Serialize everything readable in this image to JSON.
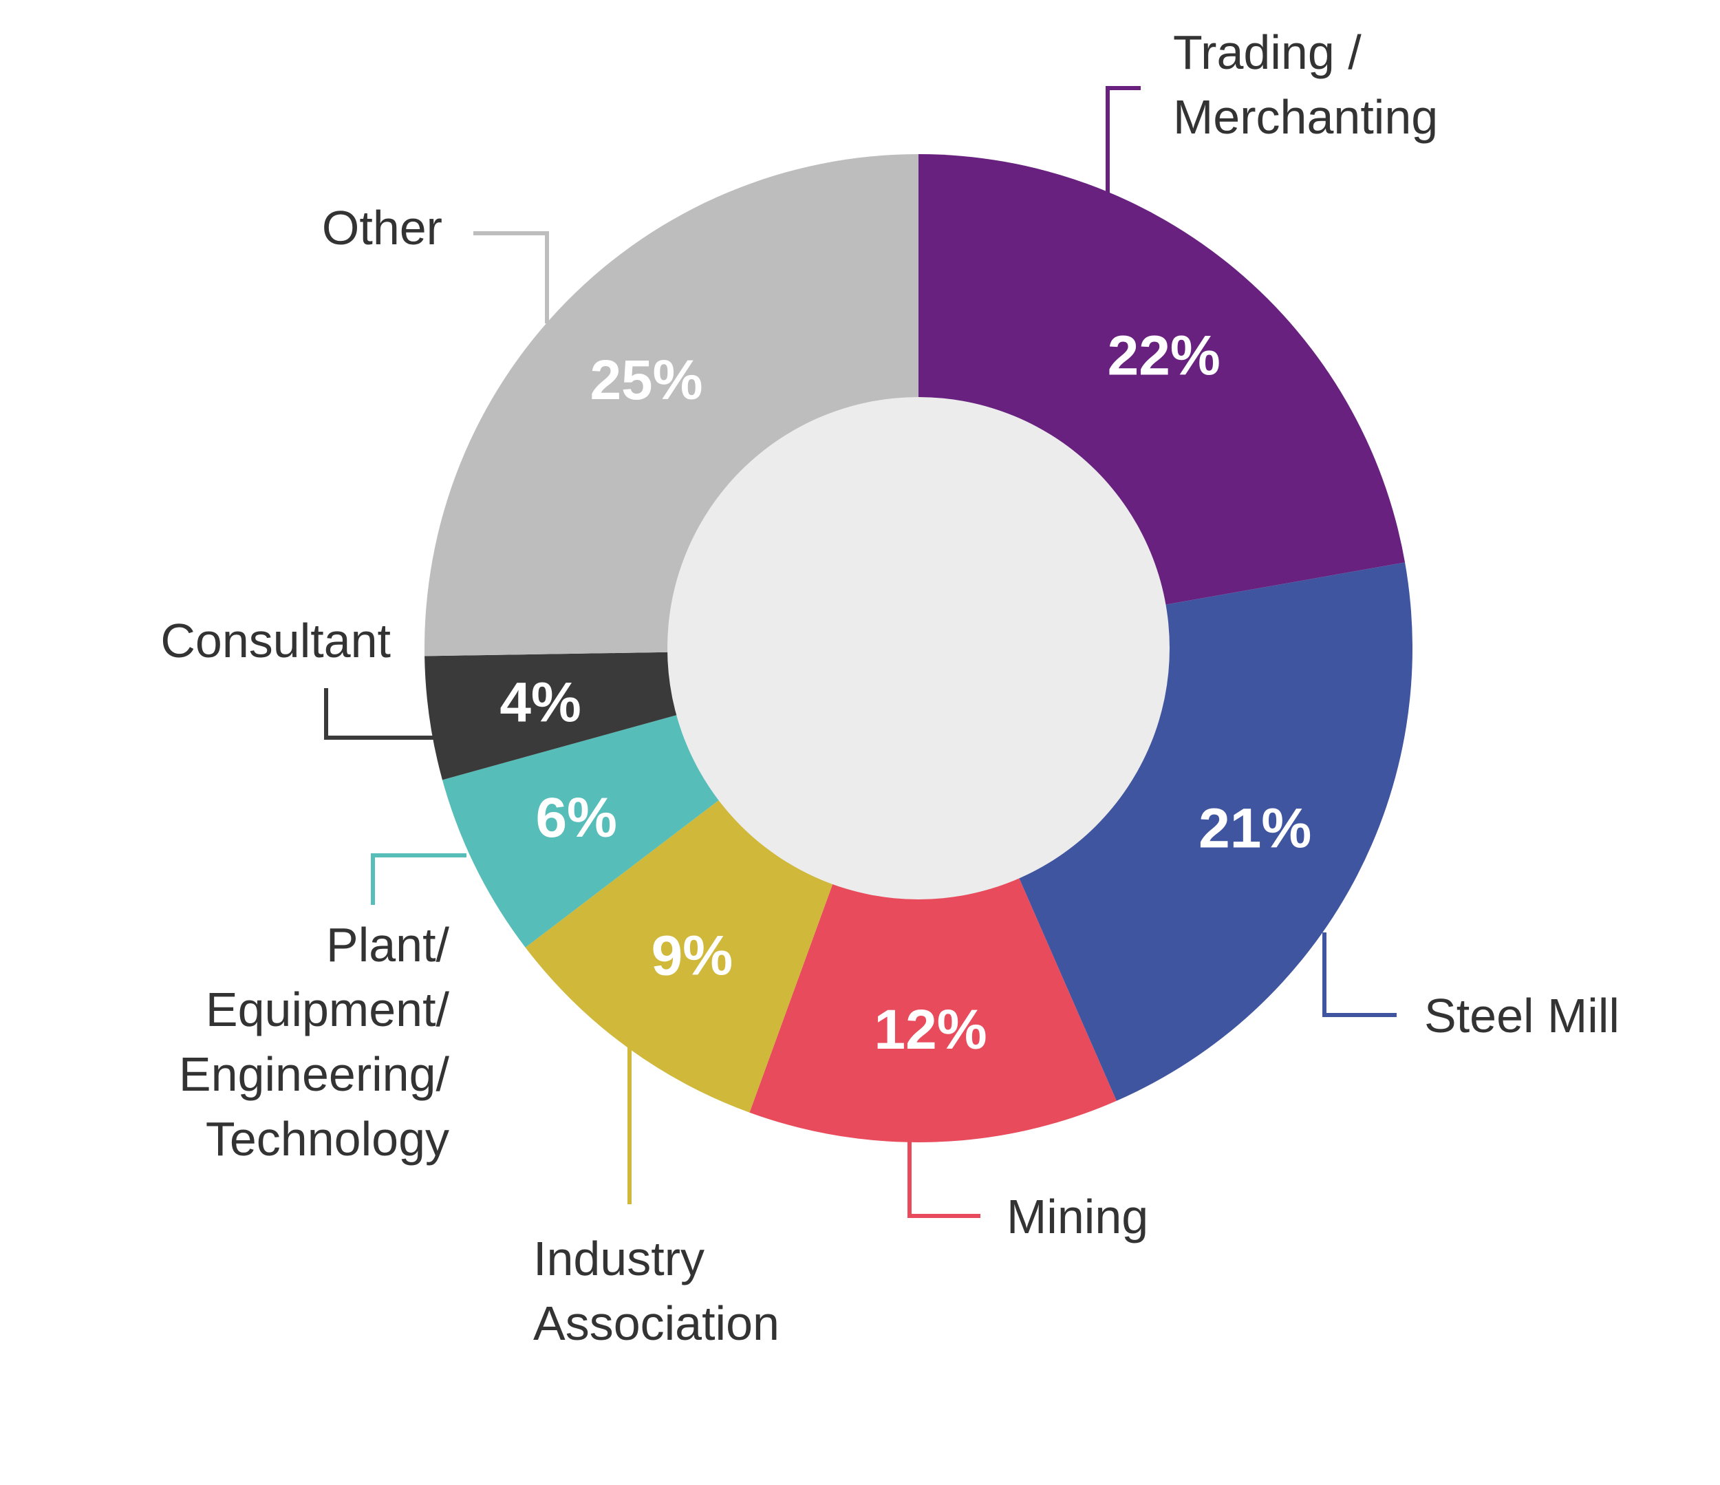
{
  "chart_data": {
    "type": "pie",
    "title": "",
    "center_color": "#ececec",
    "slices": [
      {
        "label": "Trading / Merchanting",
        "label_lines": [
          "Trading /",
          "Merchanting"
        ],
        "value": 22,
        "value_label": "22%",
        "color": "#68217f"
      },
      {
        "label": "Steel Mill",
        "label_lines": [
          "Steel Mill"
        ],
        "value": 21,
        "value_label": "21%",
        "color": "#4055a0"
      },
      {
        "label": "Mining",
        "label_lines": [
          "Mining"
        ],
        "value": 12,
        "value_label": "12%",
        "color": "#e84b5b"
      },
      {
        "label": "Industry Association",
        "label_lines": [
          "Industry",
          "Association"
        ],
        "value": 9,
        "value_label": "9%",
        "color": "#cfb83a"
      },
      {
        "label": "Plant/ Equipment/ Engineering/ Technology",
        "label_lines": [
          "Plant/",
          "Equipment/",
          "Engineering/",
          "Technology"
        ],
        "value": 6,
        "value_label": "6%",
        "color": "#56bdb8"
      },
      {
        "label": "Consultant",
        "label_lines": [
          "Consultant"
        ],
        "value": 4,
        "value_label": "4%",
        "color": "#3a3a3a"
      },
      {
        "label": "Other",
        "label_lines": [
          "Other"
        ],
        "value": 25,
        "value_label": "25%",
        "color": "#bdbdbd"
      }
    ]
  }
}
